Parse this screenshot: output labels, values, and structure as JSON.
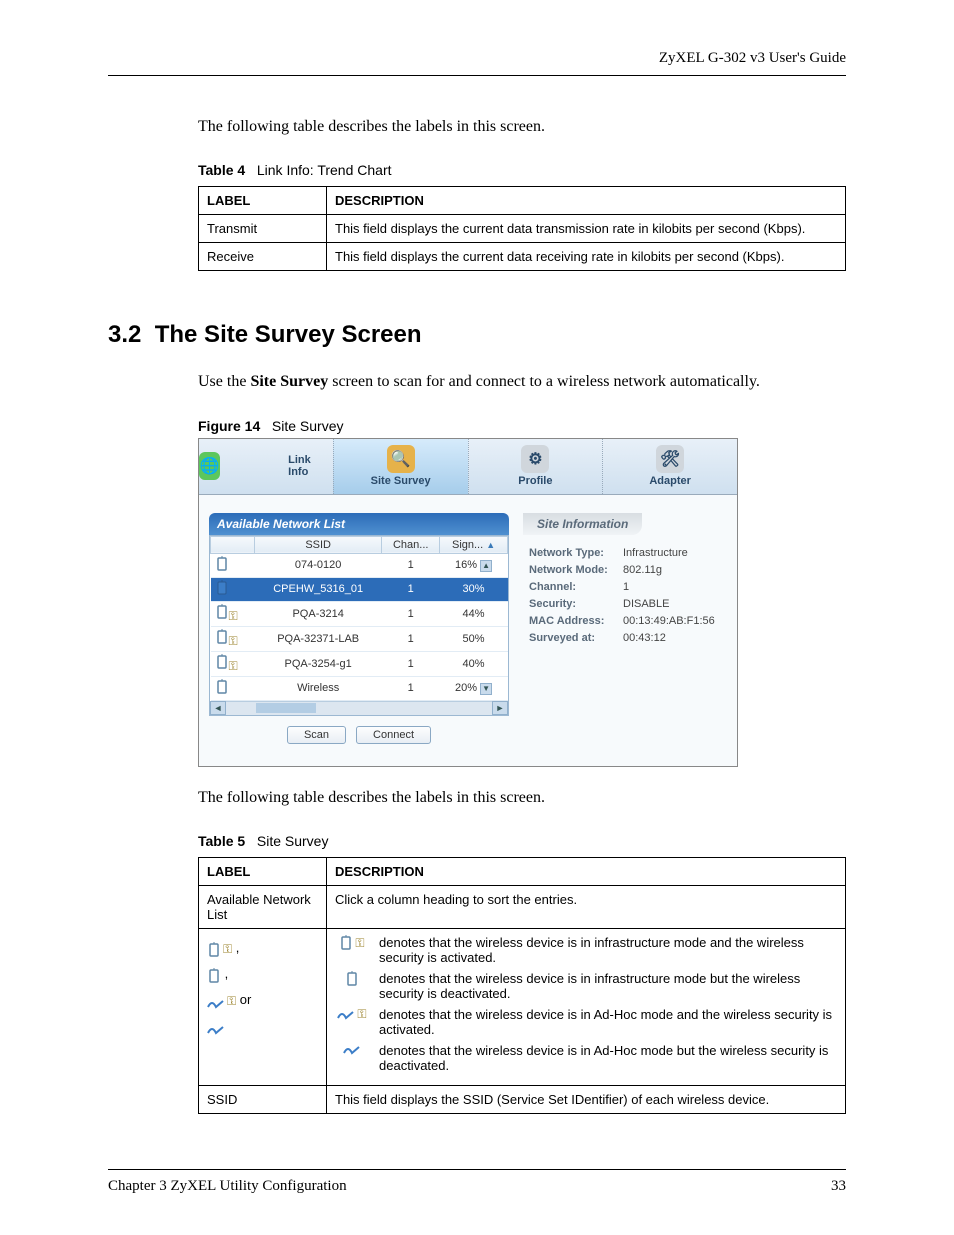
{
  "header": {
    "guide_title": "ZyXEL G-302 v3 User's Guide"
  },
  "intro_text_1": "The following table describes the labels in this screen.",
  "table4": {
    "caption_bold": "Table 4",
    "caption_rest": "Link Info: Trend Chart",
    "columns": [
      "LABEL",
      "DESCRIPTION"
    ],
    "rows": [
      [
        "Transmit",
        "This field displays the current data transmission rate in kilobits per second (Kbps)."
      ],
      [
        "Receive",
        "This field displays the current data receiving rate in kilobits per second (Kbps)."
      ]
    ]
  },
  "section": {
    "number": "3.2",
    "title": "The Site Survey Screen",
    "intro_prefix": "Use the ",
    "intro_bold": "Site Survey",
    "intro_suffix": " screen to scan for and connect to a wireless network automatically."
  },
  "figure": {
    "caption_bold": "Figure 14",
    "caption_rest": "Site Survey"
  },
  "screenshot": {
    "toolbar": [
      {
        "label": "Link Info",
        "icon": "🌐",
        "bg": "#5cc75c"
      },
      {
        "label": "Site Survey",
        "icon": "🔍",
        "bg": "#e6b24a",
        "active": true
      },
      {
        "label": "Profile",
        "icon": "⚙",
        "bg": "#d0d6dc"
      },
      {
        "label": "Adapter",
        "icon": "🛠",
        "bg": "#d0d6dc"
      }
    ],
    "left_panel_title": "Available Network List",
    "net_columns": [
      "",
      "SSID",
      "Chan...",
      "Sign..."
    ],
    "net_rows": [
      {
        "iconset": "ap",
        "ssid": "074-0120",
        "chan": "1",
        "signal": "16%"
      },
      {
        "iconset": "ap-blue",
        "ssid": "CPEHW_5316_01",
        "chan": "1",
        "signal": "30%",
        "selected": true
      },
      {
        "iconset": "ap-key",
        "ssid": "PQA-3214",
        "chan": "1",
        "signal": "44%"
      },
      {
        "iconset": "ap-key",
        "ssid": "PQA-32371-LAB",
        "chan": "1",
        "signal": "50%"
      },
      {
        "iconset": "ap-key",
        "ssid": "PQA-3254-g1",
        "chan": "1",
        "signal": "40%"
      },
      {
        "iconset": "ap",
        "ssid": "Wireless",
        "chan": "1",
        "signal": "20%"
      }
    ],
    "buttons": {
      "scan": "Scan",
      "connect": "Connect"
    },
    "right_panel_title": "Site Information",
    "info": [
      {
        "label": "Network Type:",
        "value": "Infrastructure"
      },
      {
        "label": "Network Mode:",
        "value": "802.11g"
      },
      {
        "label": "Channel:",
        "value": "1"
      },
      {
        "label": "Security:",
        "value": "DISABLE"
      },
      {
        "label": "MAC Address:",
        "value": "00:13:49:AB:F1:56"
      },
      {
        "label": "Surveyed at:",
        "value": "00:43:12"
      }
    ]
  },
  "intro_text_2": "The following table describes the labels in this screen.",
  "table5": {
    "caption_bold": "Table 5",
    "caption_rest": "Site Survey",
    "columns": [
      "LABEL",
      "DESCRIPTION"
    ],
    "row1_label": "Available Network List",
    "row1_desc": "Click a column heading to sort the entries.",
    "row2_label_or": "or",
    "row2_descs": [
      "denotes that the wireless device is in infrastructure mode and the wireless security is activated.",
      "denotes that the wireless device is in infrastructure mode but the wireless security is deactivated.",
      "denotes that the wireless device is in Ad-Hoc mode and the wireless security is activated.",
      "denotes that the wireless device is in Ad-Hoc mode but the wireless security is deactivated."
    ],
    "row3_label": "SSID",
    "row3_desc": "This field displays the SSID (Service Set IDentifier) of each wireless device."
  },
  "footer": {
    "chapter": "Chapter 3 ZyXEL Utility Configuration",
    "page": "33"
  }
}
